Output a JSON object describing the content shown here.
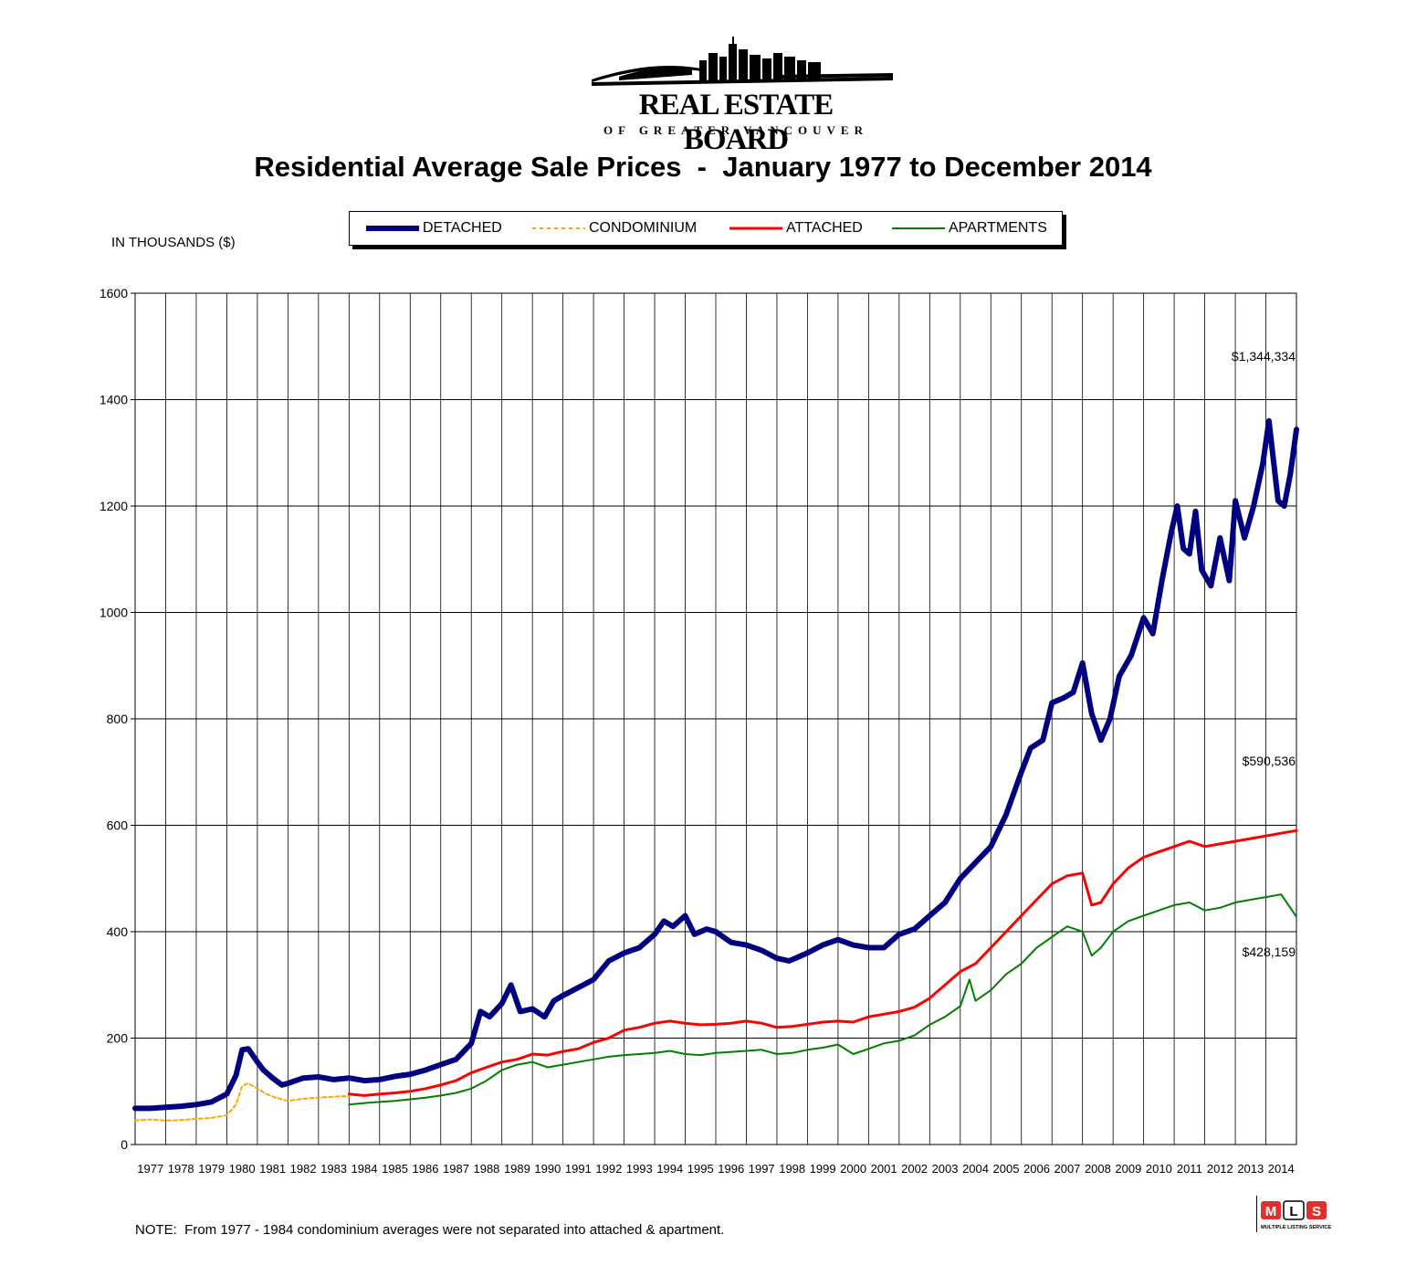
{
  "header": {
    "logo_line1": "REAL ESTATE BOARD",
    "logo_line2": "OF GREATER VANCOUVER"
  },
  "units_label": "IN THOUSANDS ($)",
  "note": "NOTE:  From 1977 - 1984 condominium averages were not separated into attached & apartment.",
  "mls_logo": {
    "letters": [
      "M",
      "L",
      "S"
    ],
    "caption": "MULTIPLE LISTING SERVICE"
  },
  "chart_data": {
    "type": "line",
    "title": "Residential Average Sale Prices  -  January 1977 to December 2014",
    "xlabel": "",
    "ylabel": "IN THOUSANDS ($)",
    "xlim": [
      1977,
      2015
    ],
    "ylim": [
      0,
      1600
    ],
    "y_ticks": [
      0,
      200,
      400,
      600,
      800,
      1000,
      1200,
      1400,
      1600
    ],
    "x_ticks": [
      "1977",
      "1978",
      "1979",
      "1980",
      "1981",
      "1982",
      "1983",
      "1984",
      "1985",
      "1986",
      "1987",
      "1988",
      "1989",
      "1990",
      "1991",
      "1992",
      "1993",
      "1994",
      "1995",
      "1996",
      "1997",
      "1998",
      "1999",
      "2000",
      "2001",
      "2002",
      "2003",
      "2004",
      "2005",
      "2006",
      "2007",
      "2008",
      "2009",
      "2010",
      "2011",
      "2012",
      "2013",
      "2014"
    ],
    "grid": true,
    "legend_position": "top",
    "series": [
      {
        "name": "DETACHED",
        "color": "#000080",
        "style": "solid-thick",
        "x": [
          1977.0,
          1977.5,
          1978.0,
          1978.5,
          1979.0,
          1979.5,
          1980.0,
          1980.3,
          1980.5,
          1980.7,
          1981.0,
          1981.2,
          1981.5,
          1981.8,
          1982.0,
          1982.5,
          1983.0,
          1983.5,
          1984.0,
          1984.5,
          1985.0,
          1985.5,
          1986.0,
          1986.5,
          1987.0,
          1987.5,
          1988.0,
          1988.3,
          1988.6,
          1989.0,
          1989.3,
          1989.6,
          1990.0,
          1990.4,
          1990.7,
          1991.0,
          1991.5,
          1992.0,
          1992.5,
          1993.0,
          1993.5,
          1994.0,
          1994.3,
          1994.6,
          1995.0,
          1995.3,
          1995.7,
          1996.0,
          1996.5,
          1997.0,
          1997.5,
          1998.0,
          1998.4,
          1998.8,
          1999.0,
          1999.5,
          2000.0,
          2000.5,
          2001.0,
          2001.5,
          2002.0,
          2002.5,
          2003.0,
          2003.5,
          2004.0,
          2004.5,
          2005.0,
          2005.5,
          2006.0,
          2006.3,
          2006.7,
          2007.0,
          2007.4,
          2007.7,
          2008.0,
          2008.3,
          2008.6,
          2008.9,
          2009.2,
          2009.6,
          2010.0,
          2010.3,
          2010.6,
          2010.9,
          2011.1,
          2011.3,
          2011.5,
          2011.7,
          2011.9,
          2012.2,
          2012.5,
          2012.8,
          2013.0,
          2013.3,
          2013.6,
          2013.9,
          2014.1,
          2014.4,
          2014.6,
          2014.8,
          2015.0
        ],
        "values": [
          68,
          68,
          70,
          72,
          75,
          80,
          95,
          130,
          178,
          180,
          155,
          140,
          125,
          112,
          115,
          125,
          127,
          122,
          125,
          120,
          122,
          128,
          132,
          140,
          150,
          160,
          190,
          250,
          240,
          265,
          300,
          250,
          255,
          240,
          270,
          280,
          295,
          310,
          345,
          360,
          370,
          395,
          420,
          410,
          430,
          395,
          405,
          400,
          380,
          375,
          365,
          350,
          345,
          355,
          360,
          375,
          385,
          375,
          370,
          370,
          395,
          405,
          430,
          455,
          500,
          530,
          560,
          620,
          700,
          745,
          760,
          830,
          840,
          850,
          905,
          810,
          760,
          800,
          880,
          920,
          990,
          960,
          1060,
          1150,
          1200,
          1120,
          1110,
          1190,
          1080,
          1050,
          1140,
          1060,
          1210,
          1140,
          1200,
          1280,
          1360,
          1210,
          1200,
          1260,
          1344
        ]
      },
      {
        "name": "CONDOMINIUM",
        "color": "#FFA500",
        "style": "dotted",
        "x": [
          1977.0,
          1977.5,
          1978.0,
          1978.5,
          1979.0,
          1979.5,
          1980.0,
          1980.3,
          1980.5,
          1980.7,
          1981.0,
          1981.3,
          1981.6,
          1982.0,
          1982.5,
          1983.0,
          1983.5,
          1984.0
        ],
        "values": [
          45,
          47,
          45,
          46,
          48,
          50,
          55,
          75,
          110,
          115,
          105,
          95,
          88,
          82,
          86,
          88,
          90,
          91
        ]
      },
      {
        "name": "ATTACHED",
        "color": "#FF0000",
        "style": "solid",
        "x": [
          1984.0,
          1984.5,
          1985.0,
          1985.5,
          1986.0,
          1986.5,
          1987.0,
          1987.5,
          1988.0,
          1988.5,
          1989.0,
          1989.5,
          1990.0,
          1990.5,
          1991.0,
          1991.5,
          1992.0,
          1992.5,
          1993.0,
          1993.5,
          1994.0,
          1994.5,
          1995.0,
          1995.5,
          1996.0,
          1996.5,
          1997.0,
          1997.5,
          1998.0,
          1998.5,
          1999.0,
          1999.5,
          2000.0,
          2000.5,
          2001.0,
          2001.5,
          2002.0,
          2002.5,
          2003.0,
          2003.5,
          2004.0,
          2004.5,
          2005.0,
          2005.5,
          2006.0,
          2006.5,
          2007.0,
          2007.5,
          2008.0,
          2008.3,
          2008.6,
          2009.0,
          2009.5,
          2010.0,
          2010.5,
          2011.0,
          2011.5,
          2012.0,
          2012.5,
          2013.0,
          2013.5,
          2014.0,
          2014.5,
          2015.0
        ],
        "values": [
          95,
          92,
          95,
          97,
          100,
          105,
          112,
          120,
          135,
          145,
          155,
          160,
          170,
          168,
          175,
          180,
          192,
          200,
          215,
          220,
          228,
          232,
          228,
          225,
          226,
          228,
          232,
          228,
          220,
          222,
          226,
          230,
          232,
          230,
          240,
          245,
          250,
          258,
          275,
          300,
          325,
          340,
          370,
          400,
          430,
          460,
          490,
          505,
          510,
          450,
          455,
          490,
          520,
          540,
          550,
          560,
          570,
          560,
          565,
          570,
          575,
          580,
          585,
          590
        ]
      },
      {
        "name": "APARTMENTS",
        "color": "#008000",
        "style": "solid-thin",
        "x": [
          1984.0,
          1984.5,
          1985.0,
          1985.5,
          1986.0,
          1986.5,
          1987.0,
          1987.5,
          1988.0,
          1988.5,
          1989.0,
          1989.5,
          1990.0,
          1990.5,
          1991.0,
          1991.5,
          1992.0,
          1992.5,
          1993.0,
          1993.5,
          1994.0,
          1994.5,
          1995.0,
          1995.5,
          1996.0,
          1996.5,
          1997.0,
          1997.5,
          1998.0,
          1998.5,
          1999.0,
          1999.5,
          2000.0,
          2000.5,
          2001.0,
          2001.5,
          2002.0,
          2002.5,
          2003.0,
          2003.5,
          2004.0,
          2004.3,
          2004.5,
          2005.0,
          2005.5,
          2006.0,
          2006.5,
          2007.0,
          2007.5,
          2008.0,
          2008.3,
          2008.6,
          2009.0,
          2009.5,
          2010.0,
          2010.5,
          2011.0,
          2011.5,
          2012.0,
          2012.5,
          2013.0,
          2013.5,
          2014.0,
          2014.5,
          2015.0
        ],
        "values": [
          75,
          78,
          80,
          82,
          85,
          88,
          92,
          97,
          105,
          120,
          140,
          150,
          155,
          145,
          150,
          155,
          160,
          165,
          168,
          170,
          172,
          176,
          170,
          168,
          172,
          174,
          176,
          178,
          170,
          172,
          178,
          182,
          188,
          170,
          180,
          190,
          195,
          205,
          225,
          240,
          260,
          310,
          270,
          290,
          320,
          340,
          370,
          390,
          410,
          400,
          355,
          370,
          400,
          420,
          430,
          440,
          450,
          455,
          440,
          445,
          455,
          460,
          465,
          470,
          428
        ]
      }
    ],
    "annotations": [
      {
        "text": "$1,344,334",
        "series": "DETACHED"
      },
      {
        "text": "$590,536",
        "series": "ATTACHED"
      },
      {
        "text": "$428,159",
        "series": "APARTMENTS"
      }
    ]
  }
}
